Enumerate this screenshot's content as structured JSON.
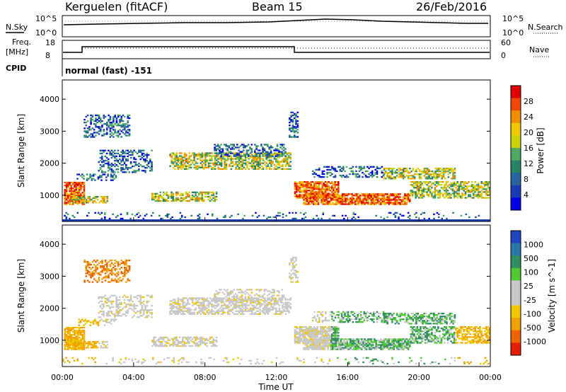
{
  "header": {
    "station": "Kerguelen (fitACF)",
    "beam": "Beam 15",
    "date": "26/Feb/2016"
  },
  "panel_top": {
    "left_label": "N.Sky",
    "right_label": "N.Search",
    "tick_hi": "10^5",
    "tick_lo": "10^0",
    "right_tick_hi": "10^5",
    "right_tick_lo": "10^0"
  },
  "panel_freq": {
    "left_label_1": "Freq.",
    "left_label_2": "[MHz]",
    "right_label": "Nave",
    "ticks_left": [
      "18",
      "8"
    ],
    "ticks_right": [
      "60",
      "0"
    ]
  },
  "cpid": {
    "label": "CPID",
    "value": "normal (fast) -151"
  },
  "x_axis": {
    "label": "Time UT",
    "ticks": [
      "00:00",
      "04:00",
      "08:00",
      "12:00",
      "16:00",
      "20:00",
      "00:00"
    ]
  },
  "chart_data": [
    {
      "type": "heatmap",
      "title": "",
      "ylabel": "Slant Range [km]",
      "xlabel": "Time UT",
      "x_range_hours": [
        0,
        24
      ],
      "ylim": [
        180,
        4600
      ],
      "yticks": [
        "1000",
        "2000",
        "3000",
        "4000"
      ],
      "colorbar": {
        "label": "Power [dB]",
        "ticks": [
          "28",
          "24",
          "20",
          "16",
          "12",
          "8",
          "4"
        ],
        "colors": [
          "#e10000",
          "#f04800",
          "#f08c00",
          "#f0c800",
          "#c8d20a",
          "#50aa64",
          "#288264",
          "#2864a0",
          "#1a3cb4",
          "#0000e6"
        ]
      }
    },
    {
      "type": "heatmap",
      "title": "",
      "ylabel": "Slant Range [km]",
      "xlabel": "Time UT",
      "x_range_hours": [
        0,
        24
      ],
      "ylim": [
        180,
        4600
      ],
      "yticks": [
        "1000",
        "2000",
        "3000",
        "4000"
      ],
      "colorbar": {
        "label": "Velocity [m s^-1]",
        "ticks": [
          "1000",
          "500",
          "100",
          "25",
          "-25",
          "-100",
          "-500",
          "-1000"
        ],
        "colors": [
          "#1e46be",
          "#2878aa",
          "#328c64",
          "#50c832",
          "#c8c8c8",
          "#c8c8c8",
          "#f0c800",
          "#f0a000",
          "#f06400",
          "#e61e00"
        ]
      }
    }
  ]
}
